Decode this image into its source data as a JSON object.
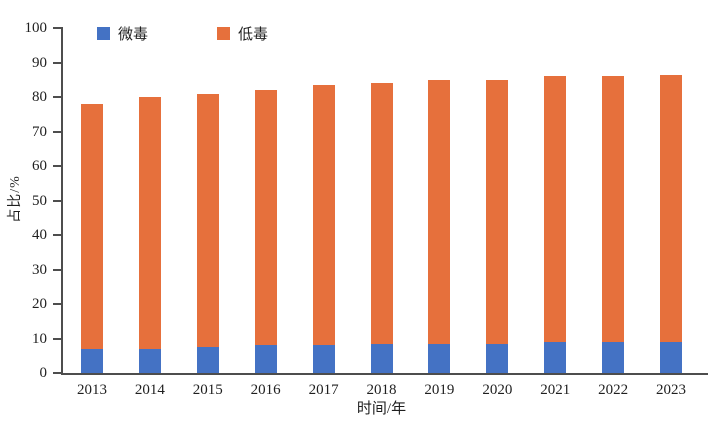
{
  "chart_data": {
    "type": "bar",
    "stacked": true,
    "title": "",
    "xlabel": "时间/年",
    "ylabel": "占比/%",
    "categories": [
      "2013",
      "2014",
      "2015",
      "2016",
      "2017",
      "2018",
      "2019",
      "2020",
      "2021",
      "2022",
      "2023"
    ],
    "series": [
      {
        "name": "微毒",
        "color": "#4472C4",
        "values": [
          7,
          7,
          7.5,
          8,
          8,
          8.5,
          8.5,
          8.5,
          9,
          9,
          9
        ]
      },
      {
        "name": "低毒",
        "color": "#E6703C",
        "values": [
          71,
          73,
          73.5,
          74,
          75.5,
          75.5,
          76.5,
          76.5,
          77,
          77,
          77.5
        ]
      }
    ],
    "stack_totals": [
      78,
      80,
      81,
      82,
      83.5,
      84,
      85,
      85,
      86,
      86,
      86.5
    ],
    "ylim": [
      0,
      100
    ],
    "ytick_step": 10,
    "grid": false,
    "legend_position": "top-left"
  },
  "colors": {
    "weidu_blue": "#4472C4",
    "didu_orange": "#E6703C",
    "axis": "#4d4d4d",
    "text": "#1f1f1f",
    "background": "#ffffff"
  }
}
